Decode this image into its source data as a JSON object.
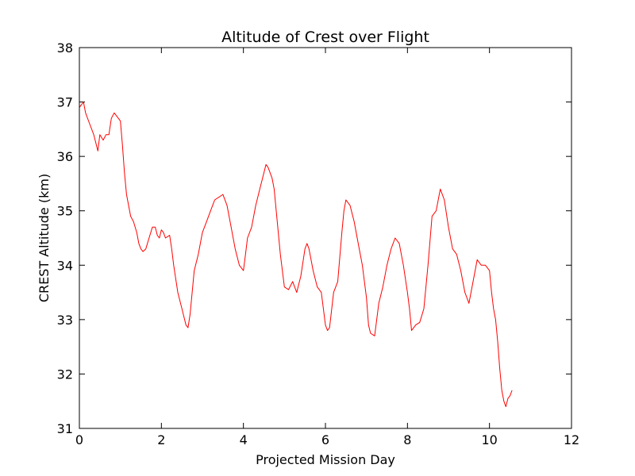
{
  "chart_data": {
    "type": "line",
    "title": "Altitude of Crest over Flight",
    "xlabel": "Projected Mission Day",
    "ylabel": "CREST Altitude (km)",
    "xlim": [
      0,
      12
    ],
    "ylim": [
      31,
      38
    ],
    "xticks": [
      0,
      2,
      4,
      6,
      8,
      10,
      12
    ],
    "yticks": [
      31,
      32,
      33,
      34,
      35,
      36,
      37,
      38
    ],
    "grid": false,
    "legend": "none",
    "series": [
      {
        "color": "#ff0000",
        "x": [
          0.0,
          0.1,
          0.15,
          0.25,
          0.35,
          0.45,
          0.5,
          0.58,
          0.65,
          0.72,
          0.78,
          0.85,
          0.9,
          0.95,
          1.0,
          1.05,
          1.1,
          1.15,
          1.2,
          1.25,
          1.32,
          1.4,
          1.45,
          1.5,
          1.55,
          1.62,
          1.7,
          1.78,
          1.85,
          1.9,
          1.95,
          2.0,
          2.05,
          2.1,
          2.2,
          2.25,
          2.3,
          2.4,
          2.5,
          2.6,
          2.65,
          2.7,
          2.75,
          2.8,
          2.9,
          3.0,
          3.1,
          3.2,
          3.3,
          3.4,
          3.5,
          3.6,
          3.7,
          3.8,
          3.9,
          3.95,
          4.0,
          4.05,
          4.1,
          4.2,
          4.3,
          4.4,
          4.5,
          4.55,
          4.6,
          4.7,
          4.75,
          4.8,
          4.9,
          5.0,
          5.1,
          5.2,
          5.3,
          5.4,
          5.5,
          5.55,
          5.6,
          5.7,
          5.8,
          5.9,
          5.95,
          6.0,
          6.05,
          6.1,
          6.2,
          6.3,
          6.4,
          6.45,
          6.5,
          6.6,
          6.7,
          6.8,
          6.9,
          7.0,
          7.05,
          7.1,
          7.2,
          7.3,
          7.4,
          7.5,
          7.6,
          7.7,
          7.8,
          7.9,
          8.0,
          8.05,
          8.1,
          8.2,
          8.3,
          8.4,
          8.5,
          8.6,
          8.7,
          8.75,
          8.8,
          8.9,
          9.0,
          9.05,
          9.1,
          9.2,
          9.3,
          9.4,
          9.5,
          9.6,
          9.7,
          9.8,
          9.9,
          10.0,
          10.05,
          10.1,
          10.15,
          10.2,
          10.25,
          10.3,
          10.35,
          10.4,
          10.45,
          10.5,
          10.55
        ],
        "y": [
          36.9,
          37.0,
          36.8,
          36.6,
          36.4,
          36.1,
          36.4,
          36.3,
          36.4,
          36.4,
          36.7,
          36.8,
          36.75,
          36.7,
          36.65,
          36.2,
          35.7,
          35.3,
          35.1,
          34.9,
          34.8,
          34.6,
          34.4,
          34.3,
          34.25,
          34.3,
          34.5,
          34.7,
          34.7,
          34.55,
          34.5,
          34.65,
          34.6,
          34.5,
          34.55,
          34.3,
          34.0,
          33.5,
          33.2,
          32.9,
          32.85,
          33.1,
          33.5,
          33.9,
          34.2,
          34.6,
          34.8,
          35.0,
          35.2,
          35.25,
          35.3,
          35.1,
          34.7,
          34.3,
          34.0,
          33.95,
          33.9,
          34.2,
          34.5,
          34.7,
          35.1,
          35.4,
          35.7,
          35.85,
          35.8,
          35.6,
          35.4,
          35.0,
          34.2,
          33.6,
          33.55,
          33.7,
          33.5,
          33.8,
          34.3,
          34.4,
          34.3,
          33.9,
          33.6,
          33.5,
          33.2,
          32.9,
          32.8,
          32.85,
          33.5,
          33.7,
          34.6,
          35.0,
          35.2,
          35.1,
          34.8,
          34.4,
          34.0,
          33.4,
          32.9,
          32.75,
          32.7,
          33.3,
          33.6,
          34.0,
          34.3,
          34.5,
          34.4,
          34.0,
          33.5,
          33.2,
          32.8,
          32.9,
          32.95,
          33.2,
          34.0,
          34.9,
          35.0,
          35.2,
          35.4,
          35.2,
          34.7,
          34.5,
          34.3,
          34.2,
          33.9,
          33.5,
          33.3,
          33.7,
          34.1,
          34.0,
          34.0,
          33.9,
          33.5,
          33.2,
          33.0,
          32.6,
          32.1,
          31.7,
          31.5,
          31.4,
          31.55,
          31.6,
          31.7
        ]
      }
    ]
  }
}
